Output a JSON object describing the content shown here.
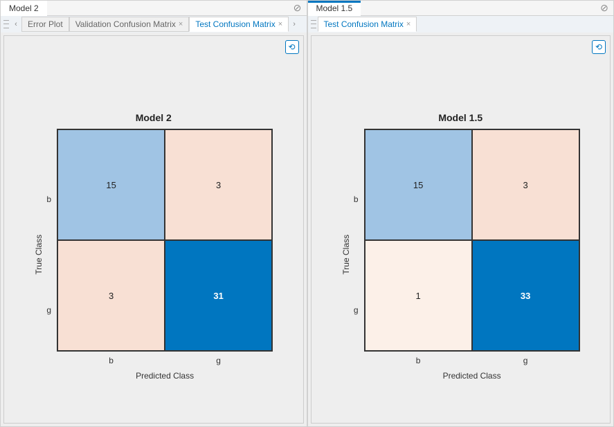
{
  "panes": [
    {
      "outerTab": "Model 2",
      "outerHighlight": false,
      "innerTabs": [
        {
          "label": "Error Plot",
          "active": false,
          "closable": false
        },
        {
          "label": "Validation Confusion Matrix",
          "active": false,
          "closable": true
        },
        {
          "label": "Test Confusion Matrix",
          "active": true,
          "closable": true
        }
      ],
      "showNavArrows": true,
      "chart": {
        "title": "Model 2",
        "yLabel": "True Class",
        "xLabel": "Predicted Class",
        "rowLabels": [
          "b",
          "g"
        ],
        "colLabels": [
          "b",
          "g"
        ],
        "cells": [
          {
            "value": "15",
            "bg": "#a0c4e4",
            "fg": "#222222",
            "bold": false
          },
          {
            "value": "3",
            "bg": "#f8e0d4",
            "fg": "#222222",
            "bold": false
          },
          {
            "value": "3",
            "bg": "#f8e0d4",
            "fg": "#222222",
            "bold": false
          },
          {
            "value": "31",
            "bg": "#0076c0",
            "fg": "#ffffff",
            "bold": true
          }
        ]
      }
    },
    {
      "outerTab": "Model 1.5",
      "outerHighlight": true,
      "innerTabs": [
        {
          "label": "Test Confusion Matrix",
          "active": true,
          "closable": true
        }
      ],
      "showNavArrows": false,
      "chart": {
        "title": "Model 1.5",
        "yLabel": "True Class",
        "xLabel": "Predicted Class",
        "rowLabels": [
          "b",
          "g"
        ],
        "colLabels": [
          "b",
          "g"
        ],
        "cells": [
          {
            "value": "15",
            "bg": "#a0c4e4",
            "fg": "#222222",
            "bold": false
          },
          {
            "value": "3",
            "bg": "#f8e0d4",
            "fg": "#222222",
            "bold": false
          },
          {
            "value": "1",
            "bg": "#fcf0e8",
            "fg": "#222222",
            "bold": false
          },
          {
            "value": "33",
            "bg": "#0076c0",
            "fg": "#ffffff",
            "bold": true
          }
        ]
      }
    }
  ]
}
